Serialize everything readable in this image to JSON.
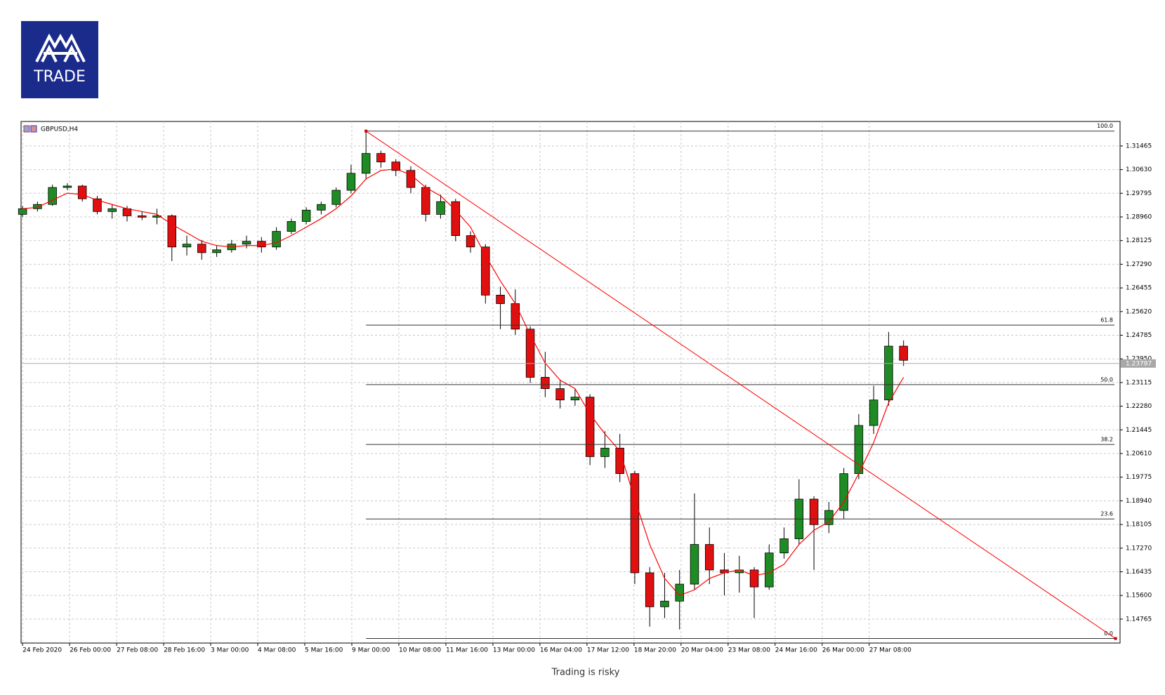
{
  "logo": "TRADE",
  "footer": "Trading is risky",
  "chart_data": {
    "type": "candlestick",
    "title": "GBPUSD,H4",
    "up_color": "#1f8b24",
    "down_color": "#e01010",
    "ma_color": "#ff0000",
    "grid": true,
    "xlim": [
      -0.1,
      73.5
    ],
    "ylim": [
      1.1392,
      1.3233
    ],
    "xticks": [
      {
        "value": 0,
        "label": "24 Feb 2020"
      },
      {
        "value": 3.15,
        "label": "26 Feb 00:00"
      },
      {
        "value": 6.3,
        "label": "27 Feb 08:00"
      },
      {
        "value": 9.45,
        "label": "28 Feb 16:00"
      },
      {
        "value": 12.6,
        "label": "3 Mar 00:00"
      },
      {
        "value": 15.75,
        "label": "4 Mar 08:00"
      },
      {
        "value": 18.9,
        "label": "5 Mar 16:00"
      },
      {
        "value": 22.05,
        "label": "9 Mar 00:00"
      },
      {
        "value": 25.2,
        "label": "10 Mar 08:00"
      },
      {
        "value": 28.35,
        "label": "11 Mar 16:00"
      },
      {
        "value": 31.5,
        "label": "13 Mar 00:00"
      },
      {
        "value": 34.65,
        "label": "16 Mar 04:00"
      },
      {
        "value": 37.8,
        "label": "17 Mar 12:00"
      },
      {
        "value": 40.95,
        "label": "18 Mar 20:00"
      },
      {
        "value": 44.1,
        "label": "20 Mar 04:00"
      },
      {
        "value": 47.25,
        "label": "23 Mar 08:00"
      },
      {
        "value": 50.4,
        "label": "24 Mar 16:00"
      },
      {
        "value": 53.55,
        "label": "26 Mar 00:00"
      },
      {
        "value": 56.7,
        "label": "27 Mar 08:00"
      }
    ],
    "yticks": [
      1.31465,
      {
        "value": 1.3063,
        "label": "1.30630"
      },
      1.29795,
      {
        "value": 1.2896,
        "label": "1.28960"
      },
      1.28125,
      {
        "value": 1.2729,
        "label": "1.27290"
      },
      1.26455,
      {
        "value": 1.2562,
        "label": "1.25620"
      },
      1.24785,
      {
        "value": 1.2395,
        "label": "1.23950"
      },
      1.23115,
      {
        "value": 1.2228,
        "label": "1.22280"
      },
      1.21445,
      {
        "value": 1.2061,
        "label": "1.20610"
      },
      1.19775,
      {
        "value": 1.1894,
        "label": "1.18940"
      },
      1.18105,
      {
        "value": 1.1727,
        "label": "1.17270"
      },
      1.16435,
      {
        "value": 1.156,
        "label": "1.15600"
      },
      1.14765
    ],
    "current_price": 1.23787,
    "ohlc": [
      [
        1.2905,
        1.2935,
        1.2895,
        1.2925
      ],
      [
        1.2925,
        1.295,
        1.2915,
        1.294
      ],
      [
        1.294,
        1.301,
        1.2935,
        1.3
      ],
      [
        1.3,
        1.3015,
        1.299,
        1.3005
      ],
      [
        1.3005,
        1.301,
        1.295,
        1.296
      ],
      [
        1.296,
        1.297,
        1.2905,
        1.2915
      ],
      [
        1.2915,
        1.294,
        1.289,
        1.2925
      ],
      [
        1.2925,
        1.2935,
        1.288,
        1.29
      ],
      [
        1.29,
        1.2915,
        1.2885,
        1.2895
      ],
      [
        1.2895,
        1.2925,
        1.287,
        1.29
      ],
      [
        1.29,
        1.2905,
        1.274,
        1.279
      ],
      [
        1.279,
        1.283,
        1.276,
        1.28
      ],
      [
        1.28,
        1.2815,
        1.2745,
        1.277
      ],
      [
        1.277,
        1.2795,
        1.2755,
        1.278
      ],
      [
        1.278,
        1.2815,
        1.277,
        1.28
      ],
      [
        1.28,
        1.283,
        1.2785,
        1.281
      ],
      [
        1.281,
        1.2825,
        1.277,
        1.279
      ],
      [
        1.279,
        1.286,
        1.278,
        1.2845
      ],
      [
        1.2845,
        1.289,
        1.2835,
        1.288
      ],
      [
        1.288,
        1.293,
        1.287,
        1.292
      ],
      [
        1.292,
        1.295,
        1.2905,
        1.294
      ],
      [
        1.294,
        1.3,
        1.293,
        1.299
      ],
      [
        1.299,
        1.308,
        1.298,
        1.305
      ],
      [
        1.305,
        1.3199,
        1.303,
        1.312
      ],
      [
        1.312,
        1.313,
        1.307,
        1.309
      ],
      [
        1.309,
        1.31,
        1.304,
        1.306
      ],
      [
        1.306,
        1.3075,
        1.298,
        1.3
      ],
      [
        1.3,
        1.301,
        1.288,
        1.2905
      ],
      [
        1.2905,
        1.2975,
        1.289,
        1.295
      ],
      [
        1.295,
        1.296,
        1.281,
        1.283
      ],
      [
        1.283,
        1.2845,
        1.277,
        1.279
      ],
      [
        1.279,
        1.28,
        1.259,
        1.262
      ],
      [
        1.262,
        1.265,
        1.25,
        1.259
      ],
      [
        1.259,
        1.264,
        1.248,
        1.25
      ],
      [
        1.25,
        1.251,
        1.231,
        1.233
      ],
      [
        1.233,
        1.242,
        1.226,
        1.229
      ],
      [
        1.229,
        1.232,
        1.222,
        1.225
      ],
      [
        1.225,
        1.229,
        1.223,
        1.226
      ],
      [
        1.226,
        1.227,
        1.202,
        1.205
      ],
      [
        1.205,
        1.214,
        1.201,
        1.208
      ],
      [
        1.208,
        1.213,
        1.196,
        1.199
      ],
      [
        1.199,
        1.2,
        1.16,
        1.164
      ],
      [
        1.164,
        1.166,
        1.145,
        1.152
      ],
      [
        1.152,
        1.164,
        1.148,
        1.154
      ],
      [
        1.154,
        1.165,
        1.144,
        1.16
      ],
      [
        1.16,
        1.192,
        1.158,
        1.174
      ],
      [
        1.174,
        1.18,
        1.16,
        1.165
      ],
      [
        1.165,
        1.171,
        1.156,
        1.164
      ],
      [
        1.164,
        1.17,
        1.157,
        1.165
      ],
      [
        1.165,
        1.166,
        1.148,
        1.159
      ],
      [
        1.159,
        1.174,
        1.158,
        1.171
      ],
      [
        1.171,
        1.18,
        1.169,
        1.176
      ],
      [
        1.176,
        1.197,
        1.174,
        1.19
      ],
      [
        1.19,
        1.191,
        1.165,
        1.181
      ],
      [
        1.181,
        1.189,
        1.178,
        1.186
      ],
      [
        1.186,
        1.201,
        1.183,
        1.199
      ],
      [
        1.199,
        1.22,
        1.197,
        1.216
      ],
      [
        1.216,
        1.23,
        1.213,
        1.225
      ],
      [
        1.225,
        1.249,
        1.223,
        1.244
      ],
      [
        1.244,
        1.246,
        1.237,
        1.239
      ]
    ],
    "ma": [
      1.2925,
      1.293,
      1.2955,
      1.298,
      1.2975,
      1.2955,
      1.294,
      1.2925,
      1.2915,
      1.2905,
      1.287,
      1.284,
      1.281,
      1.2795,
      1.279,
      1.2795,
      1.2795,
      1.2805,
      1.283,
      1.286,
      1.289,
      1.2925,
      1.297,
      1.303,
      1.306,
      1.3065,
      1.3045,
      1.3,
      1.297,
      1.292,
      1.286,
      1.276,
      1.267,
      1.259,
      1.248,
      1.238,
      1.232,
      1.229,
      1.22,
      1.213,
      1.207,
      1.19,
      1.174,
      1.162,
      1.156,
      1.158,
      1.162,
      1.164,
      1.165,
      1.163,
      1.164,
      1.167,
      1.174,
      1.179,
      1.182,
      1.189,
      1.199,
      1.21,
      1.224,
      1.233
    ],
    "trendline": {
      "x": [
        23,
        73.2
      ],
      "y": [
        1.3199,
        1.1408
      ]
    },
    "fib": [
      {
        "label": "100.0",
        "price": 1.3199
      },
      {
        "label": "61.8",
        "price": 1.2514
      },
      {
        "label": "50.0",
        "price": 1.2304
      },
      {
        "label": "38.2",
        "price": 1.2093
      },
      {
        "label": "23.6",
        "price": 1.183
      },
      {
        "label": "0.0",
        "price": 1.1408
      }
    ]
  }
}
